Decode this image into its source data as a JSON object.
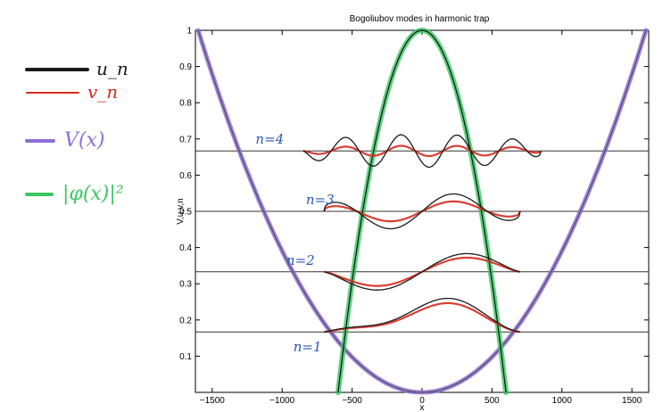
{
  "chart_data": {
    "type": "line",
    "title": "Bogoliubov modes in harmonic trap",
    "xlabel": "x",
    "ylabel": "V,u,v,n",
    "xlim": [
      -1620,
      1620
    ],
    "ylim": [
      0,
      1.0
    ],
    "x_ticks": [
      -1500,
      -1000,
      -500,
      0,
      500,
      1000,
      1500
    ],
    "x_tick_labels": [
      "−1500",
      "−1000",
      "−500",
      "0",
      "500",
      "1000",
      "1500"
    ],
    "y_ticks": [
      0.1,
      0.2,
      0.3,
      0.4,
      0.5,
      0.6,
      0.7,
      0.8,
      0.9,
      1.0
    ],
    "y_tick_labels": [
      "0.1",
      "0.2",
      "0.3",
      "0.4",
      "0.5",
      "0.6",
      "0.7",
      "0.8",
      "0.9",
      "1"
    ],
    "grid": false,
    "potential": {
      "type": "parabola",
      "x_zero": 0,
      "y_at_x": [
        [
          -1600,
          1.0
        ],
        [
          0,
          0.0
        ],
        [
          1600,
          1.0
        ]
      ]
    },
    "density": {
      "type": "thomas-fermi",
      "peak": 1.0,
      "radius": 600
    },
    "modes": [
      {
        "label": "n=1",
        "level": 0.167,
        "amplitude_u": 0.072,
        "amplitude_v": 0.065,
        "x_range": [
          -700,
          700
        ]
      },
      {
        "label": "n=2",
        "level": 0.333,
        "amplitude_u": 0.055,
        "amplitude_v": 0.045,
        "x_range": [
          -700,
          700
        ]
      },
      {
        "label": "n=3",
        "level": 0.5,
        "amplitude_u": 0.05,
        "amplitude_v": 0.03,
        "x_range": [
          -700,
          700
        ]
      },
      {
        "label": "n=4",
        "level": 0.667,
        "amplitude_u": 0.045,
        "amplitude_v": 0.015,
        "x_range": [
          -850,
          850
        ]
      }
    ],
    "legend": [
      {
        "label": "u_n",
        "color": "#1a1a1a"
      },
      {
        "label": "v_n",
        "color": "#d42a1e"
      },
      {
        "label": "V(x)",
        "color": "#8e6fd6"
      },
      {
        "label": "|φ(x)|²",
        "color": "#39c760"
      }
    ],
    "legend_position": "left, outside plot",
    "colors": {
      "u": "#1a1a1a",
      "v": "#d42a1e",
      "potential": "#8e6fd6",
      "density": "#39c760",
      "annotation": "#2b55b3",
      "axis": "#000000"
    }
  }
}
